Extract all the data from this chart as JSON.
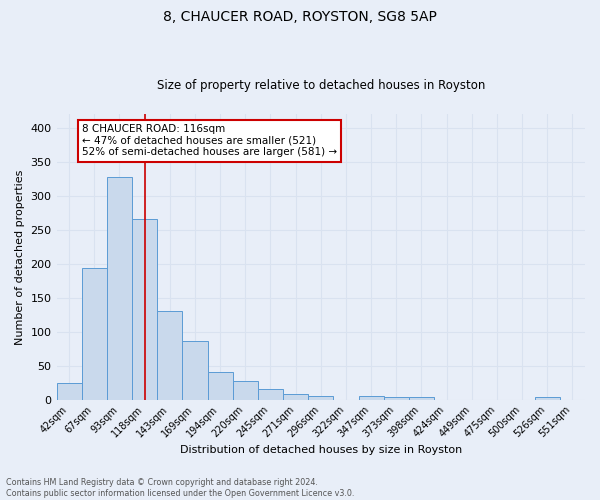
{
  "title1": "8, CHAUCER ROAD, ROYSTON, SG8 5AP",
  "title2": "Size of property relative to detached houses in Royston",
  "xlabel": "Distribution of detached houses by size in Royston",
  "ylabel": "Number of detached properties",
  "bar_labels": [
    "42sqm",
    "67sqm",
    "93sqm",
    "118sqm",
    "143sqm",
    "169sqm",
    "194sqm",
    "220sqm",
    "245sqm",
    "271sqm",
    "296sqm",
    "322sqm",
    "347sqm",
    "373sqm",
    "398sqm",
    "424sqm",
    "449sqm",
    "475sqm",
    "500sqm",
    "526sqm",
    "551sqm"
  ],
  "bar_values": [
    25,
    193,
    328,
    265,
    130,
    86,
    40,
    27,
    15,
    8,
    5,
    0,
    5,
    4,
    4,
    0,
    0,
    0,
    0,
    4,
    0
  ],
  "bar_color": "#c9d9ec",
  "bar_edge_color": "#5b9bd5",
  "vline_x_index": 3,
  "vline_color": "#cc0000",
  "annotation_text": "8 CHAUCER ROAD: 116sqm\n← 47% of detached houses are smaller (521)\n52% of semi-detached houses are larger (581) →",
  "annotation_box_color": "#ffffff",
  "annotation_box_edge_color": "#cc0000",
  "ylim": [
    0,
    420
  ],
  "yticks": [
    0,
    50,
    100,
    150,
    200,
    250,
    300,
    350,
    400
  ],
  "grid_color": "#d9e2f0",
  "background_color": "#e8eef8",
  "footnote": "Contains HM Land Registry data © Crown copyright and database right 2024.\nContains public sector information licensed under the Open Government Licence v3.0."
}
